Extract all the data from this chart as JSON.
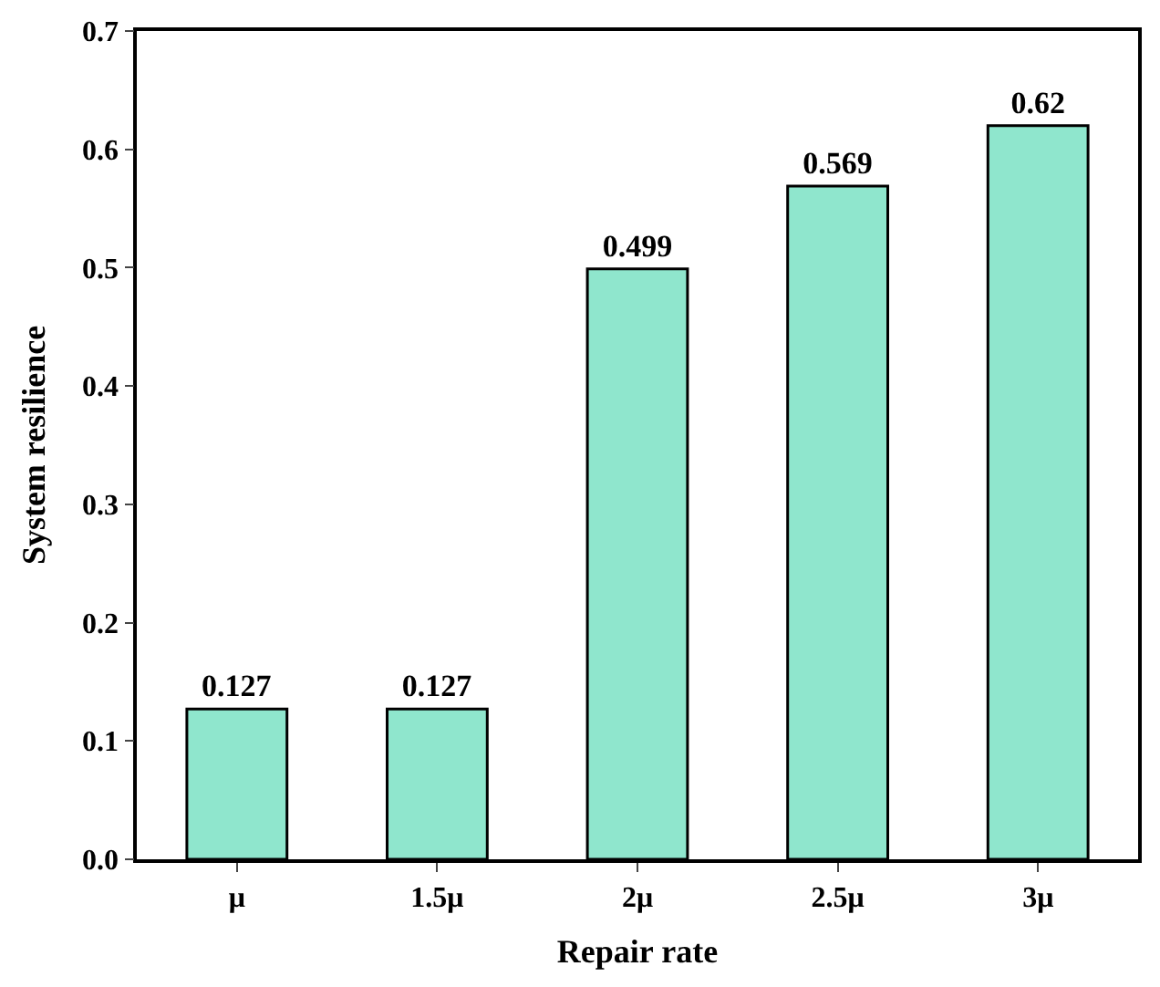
{
  "chart_data": {
    "type": "bar",
    "xlabel": "Repair rate",
    "ylabel": "System resilience",
    "categories": [
      "μ",
      "1.5μ",
      "2μ",
      "2.5μ",
      "3μ"
    ],
    "values": [
      0.127,
      0.127,
      0.499,
      0.569,
      0.62
    ],
    "color": "#8fe6cd",
    "ylim": [
      0,
      0.7
    ],
    "yticks": [
      {
        "value": 0,
        "label": "0.0"
      },
      0.1,
      0.2,
      0.3,
      0.4,
      0.5,
      0.6,
      0.7
    ],
    "data_labels": true
  }
}
